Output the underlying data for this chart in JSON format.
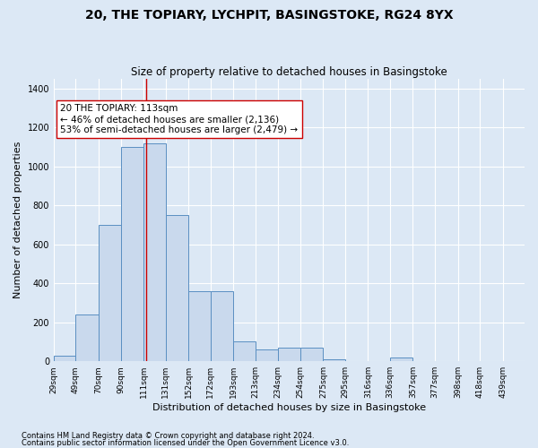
{
  "title1": "20, THE TOPIARY, LYCHPIT, BASINGSTOKE, RG24 8YX",
  "title2": "Size of property relative to detached houses in Basingstoke",
  "xlabel": "Distribution of detached houses by size in Basingstoke",
  "ylabel": "Number of detached properties",
  "footnote1": "Contains HM Land Registry data © Crown copyright and database right 2024.",
  "footnote2": "Contains public sector information licensed under the Open Government Licence v3.0.",
  "bar_left_edges": [
    29,
    49,
    70,
    90,
    111,
    131,
    152,
    172,
    193,
    213,
    234,
    254,
    275,
    295,
    316,
    336,
    357,
    377,
    398,
    418
  ],
  "bar_widths": [
    20,
    21,
    20,
    21,
    20,
    21,
    20,
    21,
    20,
    21,
    20,
    21,
    20,
    21,
    20,
    21,
    20,
    21,
    20,
    21
  ],
  "bar_heights": [
    30,
    240,
    700,
    1100,
    1120,
    750,
    360,
    360,
    100,
    60,
    70,
    70,
    10,
    0,
    0,
    20,
    0,
    0,
    0,
    0
  ],
  "bar_color": "#c9d9ed",
  "bar_edge_color": "#5a8fc2",
  "tick_labels": [
    "29sqm",
    "49sqm",
    "70sqm",
    "90sqm",
    "111sqm",
    "131sqm",
    "152sqm",
    "172sqm",
    "193sqm",
    "213sqm",
    "234sqm",
    "254sqm",
    "275sqm",
    "295sqm",
    "316sqm",
    "336sqm",
    "357sqm",
    "377sqm",
    "398sqm",
    "418sqm",
    "439sqm"
  ],
  "ylim": [
    0,
    1450
  ],
  "yticks": [
    0,
    200,
    400,
    600,
    800,
    1000,
    1200,
    1400
  ],
  "property_line_x": 113,
  "property_line_color": "#cc0000",
  "annotation_text": "20 THE TOPIARY: 113sqm\n← 46% of detached houses are smaller (2,136)\n53% of semi-detached houses are larger (2,479) →",
  "annotation_box_color": "#ffffff",
  "annotation_box_edge_color": "#cc0000",
  "background_color": "#dce8f5",
  "axes_background": "#dce8f5",
  "grid_color": "#ffffff",
  "title1_fontsize": 10,
  "title2_fontsize": 8.5,
  "xlabel_fontsize": 8,
  "ylabel_fontsize": 8,
  "annotation_fontsize": 7.5,
  "xlim_left": 29,
  "xlim_right": 459
}
